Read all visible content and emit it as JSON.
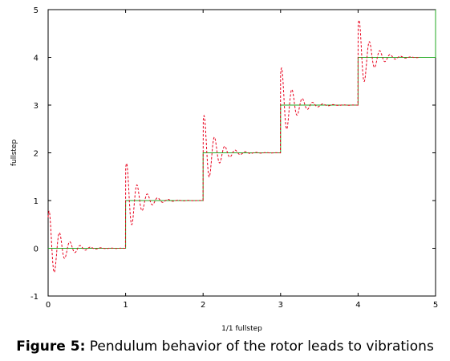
{
  "chart_data": {
    "type": "line",
    "xlabel": "1/1 fullstep",
    "ylabel": "fullstep",
    "xlim": [
      0,
      5
    ],
    "ylim": [
      -1,
      5
    ],
    "xticks": [
      "0",
      "1",
      "2",
      "3",
      "4",
      "5"
    ],
    "yticks": [
      "-1",
      "0",
      "1",
      "2",
      "3",
      "4",
      "5"
    ],
    "grid": false,
    "legend": "none",
    "series": [
      {
        "color": "#e8001c",
        "style": "dashed",
        "description_free": true,
        "step_times": [
          0,
          1,
          2,
          3,
          4
        ],
        "step_levels": [
          0,
          1,
          2,
          3,
          4
        ],
        "overshoot_amplitude": 0.85,
        "damping": 6.5,
        "oscillation_frequency": 7.5,
        "x_end": 4.8
      },
      {
        "color": "#22aa22",
        "style": "solid",
        "x": [
          0,
          1,
          1,
          2,
          2,
          3,
          3,
          4,
          4,
          5,
          5
        ],
        "y": [
          0,
          0,
          1,
          1,
          2,
          2,
          3,
          3,
          4,
          4,
          5
        ]
      }
    ]
  },
  "caption": {
    "label": "Figure 5:",
    "text": " Pendulum behavior of the rotor leads to vibrations"
  }
}
